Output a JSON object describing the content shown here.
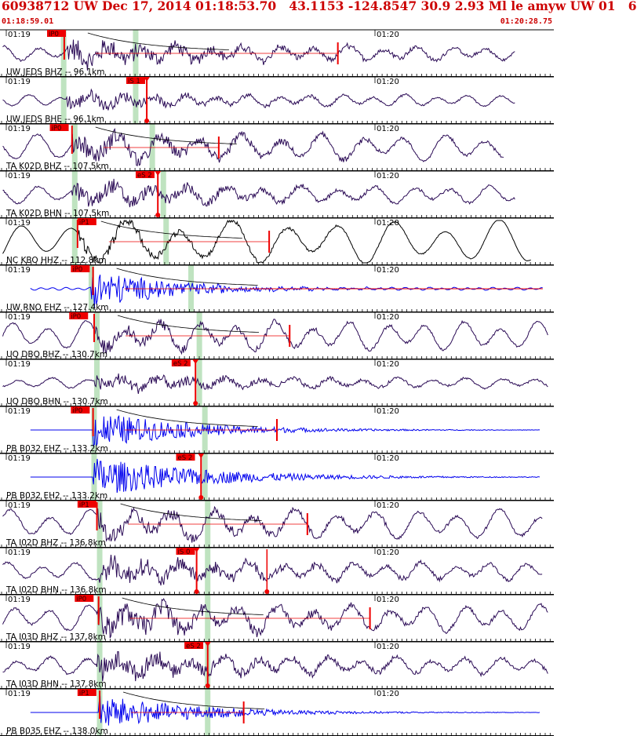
{
  "header": {
    "event_line": "60938712 UW Dec 17, 2014 01:18:53.70   43.1153 -124.8547 30.9 2.93 Ml le amyw UW 01   6",
    "start_time": "01:18:59.01",
    "end_time": "01:20:28.75"
  },
  "colors": {
    "header_text": "#cc0000",
    "trace_dark": "#2a0a55",
    "trace_black": "#000000",
    "trace_blue": "#0000ee",
    "pick": "#ee0000",
    "phase_band": "#bfe3c0",
    "ticks": "#000000"
  },
  "minute_labels": [
    "01:19",
    "01:20"
  ],
  "traces": [
    {
      "station": "UW JEDS BHZ -- 96.1km",
      "pick": "iP0",
      "color": "dark",
      "amp": 0.55,
      "noise": 0.12,
      "wave": 0.25,
      "period": 22,
      "onset": 0.12,
      "coda": 0.6,
      "ttBand": [
        0.11,
        0.24
      ],
      "pickX": 0.116,
      "endX": 0.93,
      "decay": true,
      "redPick2": 0.61,
      "redLabelX": 0.085
    },
    {
      "station": "UW JEDS BHE -- 96.1km",
      "pick": "iS 1",
      "color": "dark",
      "amp": 0.35,
      "noise": 0.06,
      "wave": 0.2,
      "period": 20,
      "onset": 0.12,
      "coda": 0.5,
      "ttBand": [
        0.11,
        0.24
      ],
      "pickX": 0.265,
      "endX": 0.93,
      "redLabelX": 0.228,
      "sTick": true
    },
    {
      "station": "TA K02D BHZ -- 107.5km",
      "pick": "iP0",
      "color": "dark",
      "amp": 0.5,
      "noise": 0.1,
      "wave": 0.45,
      "period": 26,
      "onset": 0.13,
      "coda": 0.6,
      "ttBand": [
        0.13,
        0.27
      ],
      "pickX": 0.13,
      "endX": 0.91,
      "decay": true,
      "redPick2": 0.395,
      "redLabelX": 0.09
    },
    {
      "station": "TA K02D BHN -- 107.5km",
      "pick": "eS 2",
      "color": "dark",
      "amp": 0.45,
      "noise": 0.08,
      "wave": 0.3,
      "period": 24,
      "onset": 0.13,
      "coda": 0.6,
      "ttBand": [
        0.13,
        0.29
      ],
      "pickX": 0.285,
      "endX": 0.93,
      "redLabelX": 0.245,
      "sTick": true
    },
    {
      "station": "NC KBO HHZ -- 112.8km",
      "pick": "iP1",
      "color": "black",
      "amp": 0.3,
      "noise": 0.02,
      "wave": 0.75,
      "period": 34,
      "onset": 0.14,
      "coda": 0.5,
      "ttBand": [
        0.13,
        0.295
      ],
      "pickX": 0.14,
      "endX": 0.96,
      "decay": true,
      "redPick2": 0.486,
      "redLabelX": 0.14
    },
    {
      "station": "UW RNO EHZ -- 127.4km",
      "pick": "iP0",
      "color": "blue",
      "amp": 0.95,
      "noise": 0.0,
      "wave": 0.05,
      "period": 8,
      "onset": 0.165,
      "coda": 0.28,
      "ttBand": [
        0.16,
        0.34
      ],
      "pickX": 0.168,
      "endX": 0.98,
      "startX": 0.055,
      "decay": true,
      "redPick2": 0.0,
      "tailRed": true,
      "redLabelX": 0.128
    },
    {
      "station": "UQ DBQ BHZ -- 130.7km",
      "pick": "iP0",
      "color": "dark",
      "amp": 0.35,
      "noise": 0.08,
      "wave": 0.5,
      "period": 24,
      "onset": 0.17,
      "coda": 0.6,
      "ttBand": [
        0.17,
        0.355
      ],
      "pickX": 0.17,
      "endX": 0.99,
      "decay": true,
      "redPick2": 0.523,
      "redLabelX": 0.125
    },
    {
      "station": "UQ DBQ BHN -- 130.7km",
      "pick": "eS 2",
      "color": "dark",
      "amp": 0.35,
      "noise": 0.07,
      "wave": 0.18,
      "period": 22,
      "onset": 0.17,
      "coda": 0.6,
      "ttBand": [
        0.17,
        0.355
      ],
      "pickX": 0.353,
      "endX": 0.99,
      "redLabelX": 0.31,
      "sTick": true
    },
    {
      "station": "PB B032 EHZ -- 133.2km",
      "pick": "iP0",
      "color": "blue",
      "amp": 0.9,
      "noise": 0.0,
      "wave": 0.0,
      "period": 8,
      "onset": 0.168,
      "coda": 0.35,
      "ttBand": [
        0.165,
        0.365
      ],
      "pickX": 0.168,
      "endX": 0.975,
      "startX": 0.055,
      "decay": true,
      "redPick2": 0.5,
      "redLabelX": 0.128
    },
    {
      "station": "PB B032 EH2 -- 133.2km",
      "pick": "eS 2",
      "color": "blue",
      "amp": 0.95,
      "noise": 0.0,
      "wave": 0.0,
      "period": 8,
      "onset": 0.168,
      "coda": 0.4,
      "ttBand": [
        0.165,
        0.365
      ],
      "pickX": 0.363,
      "endX": 0.975,
      "startX": 0.055,
      "redLabelX": 0.318,
      "sTick": true
    },
    {
      "station": "TA I02D BHZ -- 136.8km",
      "pick": "iP1",
      "color": "dark",
      "amp": 0.45,
      "noise": 0.1,
      "wave": 0.5,
      "period": 26,
      "onset": 0.175,
      "coda": 0.6,
      "ttBand": [
        0.175,
        0.37
      ],
      "pickX": 0.175,
      "endX": 0.98,
      "decay": true,
      "redPick2": 0.555,
      "redLabelX": 0.14
    },
    {
      "station": "TA I02D BHN -- 136.8km",
      "pick": "iS 0",
      "color": "dark",
      "amp": 0.55,
      "noise": 0.1,
      "wave": 0.3,
      "period": 22,
      "onset": 0.175,
      "coda": 0.6,
      "ttBand": [
        0.175,
        0.37
      ],
      "pickX": 0.355,
      "endX": 0.98,
      "redLabelX": 0.318,
      "sTick": true,
      "sTick2": 0.482
    },
    {
      "station": "TA I03D BHZ -- 137.8km",
      "pick": "iP0",
      "color": "dark",
      "amp": 0.6,
      "noise": 0.12,
      "wave": 0.45,
      "period": 24,
      "onset": 0.175,
      "coda": 0.6,
      "ttBand": [
        0.175,
        0.37
      ],
      "pickX": 0.178,
      "endX": 0.99,
      "decay": true,
      "redPick2": 0.668,
      "redLabelX": 0.135
    },
    {
      "station": "TA I03D BHN -- 137.8km",
      "pick": "eS 2",
      "color": "dark",
      "amp": 0.55,
      "noise": 0.12,
      "wave": 0.3,
      "period": 22,
      "onset": 0.175,
      "coda": 0.6,
      "ttBand": [
        0.175,
        0.37
      ],
      "pickX": 0.375,
      "endX": 0.99,
      "redLabelX": 0.333,
      "sTick": true
    },
    {
      "station": "PB B035 EHZ -- 138.0km",
      "pick": "iP1",
      "color": "blue",
      "amp": 0.85,
      "noise": 0.0,
      "wave": 0.0,
      "period": 8,
      "onset": 0.178,
      "coda": 0.35,
      "ttBand": [
        0.175,
        0.37
      ],
      "pickX": 0.18,
      "endX": 0.975,
      "startX": 0.055,
      "decay": true,
      "redPick2": 0.44,
      "redLabelX": 0.14
    }
  ]
}
